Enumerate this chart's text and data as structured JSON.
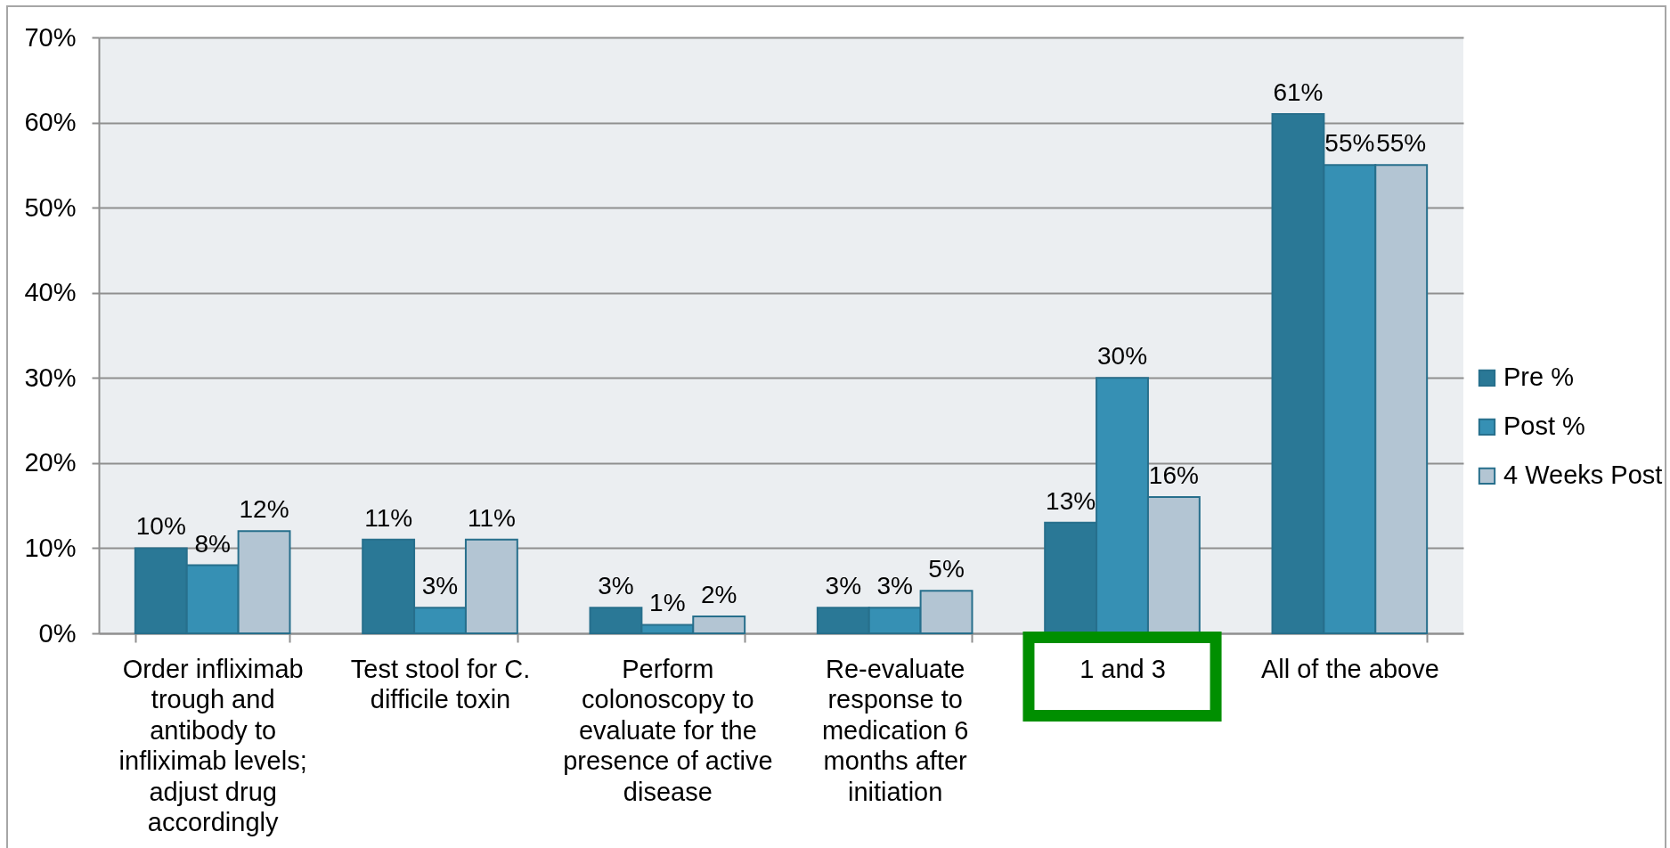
{
  "chart_data": {
    "type": "bar",
    "categories": [
      "Order infliximab trough and antibody to infliximab levels; adjust drug accordingly",
      "Test stool for C. difficile toxin",
      "Perform colonoscopy to evaluate for the presence of active disease",
      "Re-evaluate response to medication 6 months after initiation",
      "1 and 3",
      "All of the above"
    ],
    "series": [
      {
        "name": "Pre %",
        "color": "#2a7896",
        "values": [
          10,
          11,
          3,
          3,
          13,
          61
        ],
        "value_labels": [
          "10%",
          "11%",
          "3%",
          "3%",
          "13%",
          "61%"
        ]
      },
      {
        "name": "Post %",
        "color": "#3690b4",
        "values": [
          8,
          3,
          1,
          3,
          30,
          55
        ],
        "value_labels": [
          "8%",
          "3%",
          "1%",
          "3%",
          "30%",
          "55%"
        ]
      },
      {
        "name": "4 Weeks Post",
        "color": "#b3c5d3",
        "values": [
          12,
          11,
          2,
          5,
          16,
          55
        ],
        "value_labels": [
          "12%",
          "11%",
          "2%",
          "5%",
          "16%",
          "55%"
        ]
      }
    ],
    "ylim": [
      0,
      70
    ],
    "yticks": [
      {
        "value": 0,
        "label": "0%"
      },
      {
        "value": 10,
        "label": "10%"
      },
      {
        "value": 20,
        "label": "20%"
      },
      {
        "value": 30,
        "label": "30%"
      },
      {
        "value": 40,
        "label": "40%"
      },
      {
        "value": 50,
        "label": "50%"
      },
      {
        "value": 60,
        "label": "60%"
      },
      {
        "value": 70,
        "label": "70%"
      }
    ],
    "grid": "y",
    "legend": "right"
  }
}
